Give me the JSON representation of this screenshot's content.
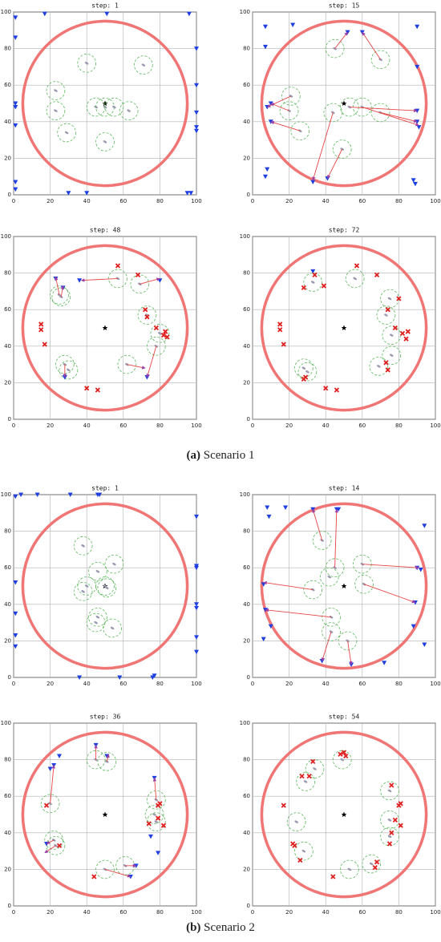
{
  "chart_data": [
    {
      "type": "scatter",
      "title": "step: 1",
      "xlim": [
        0,
        100
      ],
      "ylim": [
        0,
        100
      ],
      "xticks": [
        0,
        20,
        40,
        60,
        80,
        100
      ],
      "yticks": [
        0,
        20,
        40,
        60,
        80,
        100
      ],
      "grid": true,
      "boundary": {
        "cx": 50,
        "cy": 50,
        "r": 45
      },
      "target": {
        "x": 50,
        "y": 50
      },
      "pursuers": {
        "x": [
          40,
          71,
          23,
          23,
          29,
          45,
          50,
          55,
          63,
          50
        ],
        "y": [
          72,
          71,
          57,
          46,
          34,
          48,
          48,
          48,
          46,
          29
        ]
      },
      "evaders": {
        "x": [
          1,
          1,
          1,
          1,
          1,
          1,
          1,
          17,
          51,
          96,
          100,
          100,
          100,
          100,
          100,
          30,
          40,
          95,
          97
        ],
        "y": [
          97,
          86,
          50,
          48,
          38,
          7,
          3,
          99,
          99,
          99,
          80,
          60,
          45,
          37,
          35,
          1,
          1,
          1,
          1
        ]
      },
      "captured": {
        "x": [],
        "y": []
      },
      "arrows": {
        "x0": [],
        "y0": [],
        "x1": [],
        "y1": []
      }
    },
    {
      "type": "scatter",
      "title": "step: 15",
      "xlim": [
        0,
        100
      ],
      "ylim": [
        0,
        100
      ],
      "xticks": [
        0,
        20,
        40,
        60,
        80,
        100
      ],
      "yticks": [
        0,
        20,
        40,
        60,
        80,
        100
      ],
      "grid": true,
      "boundary": {
        "cx": 50,
        "cy": 50,
        "r": 45
      },
      "target": {
        "x": 50,
        "y": 50
      },
      "pursuers": {
        "x": [
          45,
          70,
          21,
          20,
          26,
          44,
          53,
          60,
          70,
          49
        ],
        "y": [
          80,
          74,
          54,
          46,
          35,
          45,
          48,
          48,
          45,
          25
        ]
      },
      "evaders": {
        "x": [
          7,
          7,
          8,
          7,
          10,
          8,
          10,
          22,
          52,
          60,
          90,
          90,
          90,
          90,
          91,
          33,
          41,
          88,
          89
        ],
        "y": [
          92,
          81,
          14,
          10,
          50,
          48,
          40,
          93,
          89,
          89,
          92,
          70,
          46,
          40,
          37,
          7,
          9,
          8,
          6
        ]
      },
      "captured": {
        "x": [],
        "y": []
      },
      "arrows": {
        "x0": [
          45,
          70,
          21,
          20,
          26,
          44,
          49,
          53,
          60,
          70
        ],
        "y0": [
          80,
          74,
          54,
          46,
          35,
          45,
          25,
          48,
          48,
          45
        ],
        "x1": [
          52,
          60,
          8,
          10,
          10,
          33,
          41,
          90,
          91,
          90
        ],
        "y1": [
          89,
          89,
          48,
          50,
          40,
          8,
          9,
          46,
          38,
          40
        ]
      }
    },
    {
      "type": "scatter",
      "title": "step: 48",
      "xlim": [
        0,
        100
      ],
      "ylim": [
        0,
        100
      ],
      "xticks": [
        0,
        20,
        40,
        60,
        80,
        100
      ],
      "yticks": [
        0,
        20,
        40,
        60,
        80,
        100
      ],
      "grid": true,
      "boundary": {
        "cx": 50,
        "cy": 50,
        "r": 45
      },
      "target": {
        "x": 50,
        "y": 50
      },
      "pursuers": {
        "x": [
          57,
          69,
          26,
          25,
          73,
          78,
          80,
          28,
          30,
          62
        ],
        "y": [
          77,
          74,
          67,
          68,
          57,
          40,
          47,
          30,
          27,
          30
        ]
      },
      "evaders": {
        "x": [
          23,
          27,
          36,
          80,
          28,
          73
        ],
        "y": [
          77,
          72,
          76,
          76,
          23,
          23
        ]
      },
      "captured": {
        "x": [
          15,
          15,
          17,
          57,
          68,
          72,
          73,
          78,
          83,
          84,
          82,
          40,
          46
        ],
        "y": [
          52,
          49,
          41,
          84,
          79,
          60,
          56,
          50,
          48,
          45,
          46,
          17,
          16
        ]
      },
      "arrows": {
        "x0": [
          57,
          69,
          25,
          26,
          28,
          62,
          78
        ],
        "y0": [
          77,
          74,
          68,
          67,
          30,
          30,
          40
        ],
        "x1": [
          37,
          80,
          23,
          27,
          28,
          72,
          73
        ],
        "y1": [
          76,
          77,
          78,
          73,
          23,
          28,
          23
        ]
      }
    },
    {
      "type": "scatter",
      "title": "step: 72",
      "xlim": [
        0,
        100
      ],
      "ylim": [
        0,
        100
      ],
      "xticks": [
        0,
        20,
        40,
        60,
        80,
        100
      ],
      "yticks": [
        0,
        20,
        40,
        60,
        80,
        100
      ],
      "grid": true,
      "boundary": {
        "cx": 50,
        "cy": 50,
        "r": 45
      },
      "target": {
        "x": 50,
        "y": 50
      },
      "pursuers": {
        "x": [
          33,
          56,
          75,
          73,
          76,
          76,
          69,
          28,
          30
        ],
        "y": [
          75,
          77,
          66,
          57,
          46,
          35,
          29,
          28,
          26
        ]
      },
      "evaders": {
        "x": [
          33
        ],
        "y": [
          81
        ]
      },
      "captured": {
        "x": [
          34,
          28,
          39,
          57,
          68,
          15,
          15,
          17,
          74,
          80,
          78,
          82,
          84,
          85,
          73,
          74,
          40,
          46,
          28,
          29
        ],
        "y": [
          79,
          72,
          73,
          84,
          79,
          52,
          49,
          41,
          60,
          66,
          50,
          47,
          44,
          48,
          31,
          27,
          17,
          16,
          22,
          23
        ]
      },
      "arrows": {
        "x0": [],
        "y0": [],
        "x1": [],
        "y1": []
      }
    },
    {
      "type": "scatter",
      "title": "step: 1",
      "xlim": [
        0,
        100
      ],
      "ylim": [
        0,
        100
      ],
      "xticks": [
        0,
        20,
        40,
        60,
        80,
        100
      ],
      "yticks": [
        0,
        20,
        40,
        60,
        80,
        100
      ],
      "grid": true,
      "boundary": {
        "cx": 50,
        "cy": 50,
        "r": 45
      },
      "target": {
        "x": 50,
        "y": 50
      },
      "pursuers": {
        "x": [
          38,
          46,
          55,
          40,
          38,
          50,
          51,
          46,
          45,
          54
        ],
        "y": [
          72,
          58,
          62,
          50,
          47,
          50,
          49,
          33,
          30,
          27
        ]
      },
      "evaders": {
        "x": [
          1,
          1,
          1,
          1,
          1,
          4,
          13,
          31,
          46,
          47,
          100,
          100,
          100,
          100,
          100,
          100,
          100,
          36,
          58,
          76,
          77
        ],
        "y": [
          99,
          52,
          35,
          23,
          17,
          100,
          100,
          100,
          100,
          100,
          88,
          61,
          60,
          40,
          38,
          22,
          14,
          0,
          0,
          0,
          1
        ]
      },
      "captured": {
        "x": [],
        "y": []
      },
      "arrows": {
        "x0": [],
        "y0": [],
        "x1": [],
        "y1": []
      }
    },
    {
      "type": "scatter",
      "title": "step: 14",
      "xlim": [
        0,
        100
      ],
      "ylim": [
        0,
        100
      ],
      "xticks": [
        0,
        20,
        40,
        60,
        80,
        100
      ],
      "yticks": [
        0,
        20,
        40,
        60,
        80,
        100
      ],
      "grid": true,
      "boundary": {
        "cx": 50,
        "cy": 50,
        "r": 45
      },
      "target": {
        "x": 50,
        "y": 50
      },
      "pursuers": {
        "x": [
          38,
          45,
          42,
          33,
          60,
          61,
          43,
          43,
          52
        ],
        "y": [
          75,
          60,
          55,
          48,
          62,
          51,
          33,
          25,
          20
        ]
      },
      "evaders": {
        "x": [
          8,
          9,
          18,
          33,
          46,
          47,
          94,
          90,
          92,
          6,
          7,
          10,
          6,
          38,
          54,
          72,
          89,
          88,
          94
        ],
        "y": [
          93,
          88,
          93,
          92,
          92,
          92,
          83,
          60,
          59,
          51,
          37,
          28,
          21,
          9,
          7,
          8,
          41,
          28,
          18
        ]
      },
      "captured": {
        "x": [],
        "y": []
      },
      "arrows": {
        "x0": [
          38,
          45,
          33,
          60,
          61,
          43,
          43,
          52
        ],
        "y0": [
          75,
          60,
          48,
          62,
          51,
          33,
          25,
          20
        ],
        "x1": [
          33,
          46,
          6,
          91,
          89,
          7,
          38,
          54
        ],
        "y1": [
          92,
          92,
          52,
          60,
          41,
          37,
          9,
          7
        ]
      }
    },
    {
      "type": "scatter",
      "title": "step: 36",
      "xlim": [
        0,
        100
      ],
      "ylim": [
        0,
        100
      ],
      "xticks": [
        0,
        20,
        40,
        60,
        80,
        100
      ],
      "yticks": [
        0,
        20,
        40,
        60,
        80,
        100
      ],
      "grid": true,
      "boundary": {
        "cx": 50,
        "cy": 50,
        "r": 45
      },
      "target": {
        "x": 50,
        "y": 50
      },
      "pursuers": {
        "x": [
          20,
          22,
          23,
          45,
          51,
          78,
          77,
          78,
          50,
          61
        ],
        "y": [
          56,
          36,
          33,
          80,
          79,
          58,
          50,
          46,
          20,
          22
        ]
      },
      "evaders": {
        "x": [
          22,
          25,
          20,
          45,
          51,
          77,
          75,
          79,
          18,
          67,
          64
        ],
        "y": [
          77,
          82,
          75,
          88,
          82,
          70,
          38,
          29,
          34,
          22,
          16
        ]
      },
      "captured": {
        "x": [
          18,
          25,
          44,
          79,
          80,
          82,
          74,
          79
        ],
        "y": [
          55,
          33,
          16,
          55,
          56,
          44,
          45,
          48
        ]
      },
      "arrows": {
        "x0": [
          20,
          22,
          23,
          45,
          51,
          78,
          61,
          50
        ],
        "y0": [
          56,
          36,
          33,
          80,
          79,
          58,
          22,
          20
        ],
        "x1": [
          22,
          18,
          17,
          45,
          52,
          77,
          67,
          64
        ],
        "y1": [
          77,
          34,
          29,
          88,
          83,
          70,
          22,
          16
        ]
      }
    },
    {
      "type": "scatter",
      "title": "step: 54",
      "xlim": [
        0,
        100
      ],
      "ylim": [
        0,
        100
      ],
      "xticks": [
        0,
        20,
        40,
        60,
        80,
        100
      ],
      "yticks": [
        0,
        20,
        40,
        60,
        80,
        100
      ],
      "grid": true,
      "boundary": {
        "cx": 50,
        "cy": 50,
        "r": 45
      },
      "target": {
        "x": 50,
        "y": 50
      },
      "pursuers": {
        "x": [
          49,
          34,
          29,
          24,
          28,
          53,
          65,
          75,
          75,
          75
        ],
        "y": [
          80,
          75,
          68,
          46,
          30,
          20,
          23,
          63,
          47,
          38
        ]
      },
      "evaders": {
        "x": [],
        "y": []
      },
      "captured": {
        "x": [
          48,
          50,
          51,
          33,
          31,
          27,
          17,
          23,
          22,
          26,
          44,
          68,
          67,
          76,
          80,
          81,
          81,
          78,
          76,
          75
        ],
        "y": [
          83,
          84,
          82,
          79,
          71,
          71,
          55,
          33,
          34,
          25,
          16,
          24,
          21,
          66,
          55,
          56,
          44,
          47,
          40,
          34
        ]
      },
      "arrows": {
        "x0": [],
        "y0": [],
        "x1": [],
        "y1": []
      }
    }
  ],
  "captions": [
    {
      "label": "(a)",
      "text": "Scenario 1"
    },
    {
      "label": "(b)",
      "text": "Scenario 2"
    }
  ]
}
